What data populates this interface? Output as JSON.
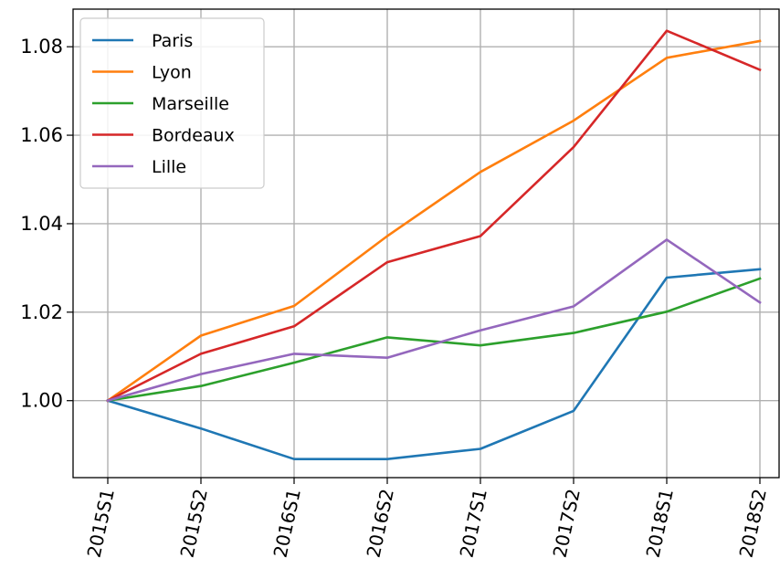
{
  "chart_data": {
    "type": "line",
    "title": "",
    "xlabel": "",
    "ylabel": "",
    "categories": [
      "2015S1",
      "2015S2",
      "2016S1",
      "2016S2",
      "2017S1",
      "2017S2",
      "2018S1",
      "2018S2"
    ],
    "yticks": [
      "1.00",
      "1.02",
      "1.04",
      "1.06",
      "1.08"
    ],
    "ytick_values": [
      1.0,
      1.02,
      1.04,
      1.06,
      1.08
    ],
    "ylim": [
      0.9826,
      1.0885
    ],
    "grid": true,
    "legend_position": "upper-left",
    "series": [
      {
        "name": "Paris",
        "color": "#1f77b4",
        "values": [
          1.0,
          0.9937,
          0.9868,
          0.9868,
          0.9891,
          0.9977,
          1.0278,
          1.0297
        ]
      },
      {
        "name": "Lyon",
        "color": "#ff7f0e",
        "values": [
          1.0,
          1.0147,
          1.0214,
          1.0372,
          1.0517,
          1.0633,
          1.0775,
          1.0813
        ]
      },
      {
        "name": "Marseille",
        "color": "#2ca02c",
        "values": [
          1.0,
          1.0033,
          1.0086,
          1.0143,
          1.0125,
          1.0153,
          1.0201,
          1.0276
        ]
      },
      {
        "name": "Bordeaux",
        "color": "#d62728",
        "values": [
          1.0,
          1.0106,
          1.0168,
          1.0313,
          1.0372,
          1.0573,
          1.0836,
          1.0748
        ]
      },
      {
        "name": "Lille",
        "color": "#9467bd",
        "values": [
          1.0,
          1.006,
          1.0106,
          1.0097,
          1.0159,
          1.0213,
          1.0364,
          1.0222
        ]
      }
    ]
  }
}
